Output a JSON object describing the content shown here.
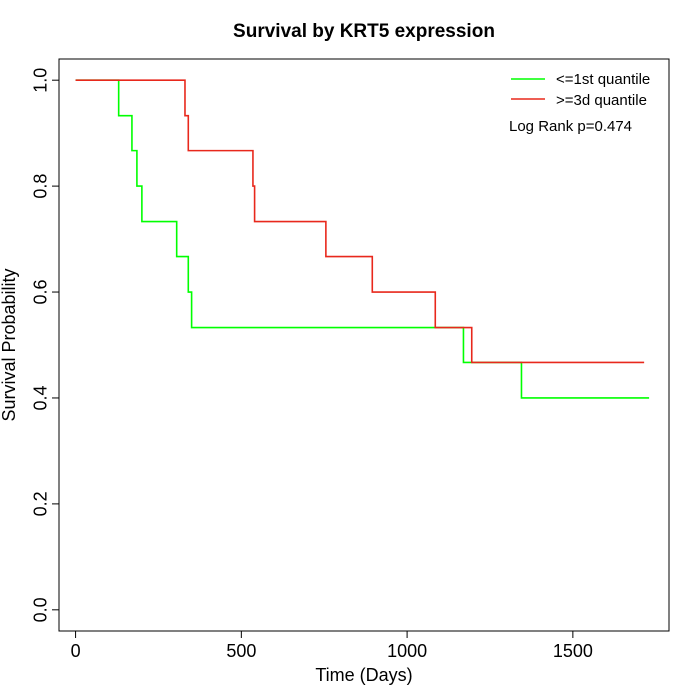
{
  "chart_data": {
    "type": "line",
    "title": "Survival by KRT5 expression",
    "xlabel": "Time (Days)",
    "ylabel": "Survival Probability",
    "xlim": [
      -50,
      1790
    ],
    "ylim": [
      -0.04,
      1.04
    ],
    "x_ticks": [
      {
        "value": 0,
        "label": "0"
      },
      {
        "value": 500,
        "label": "500"
      },
      {
        "value": 1000,
        "label": "1000"
      },
      {
        "value": 1500,
        "label": "1500"
      }
    ],
    "y_ticks": [
      {
        "value": 0.0,
        "label": "0.0"
      },
      {
        "value": 0.2,
        "label": "0.2"
      },
      {
        "value": 0.4,
        "label": "0.4"
      },
      {
        "value": 0.6,
        "label": "0.6"
      },
      {
        "value": 0.8,
        "label": "0.8"
      },
      {
        "value": 1.0,
        "label": "1.0"
      }
    ],
    "grid": false,
    "legend_position": "top-right",
    "series": [
      {
        "name": "<=1st quantile",
        "color": "#00ff00",
        "step": true,
        "points": [
          [
            0,
            1.0
          ],
          [
            130,
            0.933
          ],
          [
            170,
            0.867
          ],
          [
            185,
            0.8
          ],
          [
            200,
            0.733
          ],
          [
            305,
            0.667
          ],
          [
            340,
            0.6
          ],
          [
            350,
            0.533
          ],
          [
            1170,
            0.467
          ],
          [
            1345,
            0.4
          ],
          [
            1730,
            0.4
          ]
        ]
      },
      {
        "name": ">=3d quantile",
        "color": "#e8281c",
        "step": true,
        "points": [
          [
            0,
            1.0
          ],
          [
            330,
            0.933
          ],
          [
            340,
            0.867
          ],
          [
            535,
            0.8
          ],
          [
            540,
            0.733
          ],
          [
            755,
            0.667
          ],
          [
            895,
            0.6
          ],
          [
            1085,
            0.533
          ],
          [
            1195,
            0.467
          ],
          [
            1715,
            0.467
          ]
        ]
      }
    ],
    "annotations": [
      "Log Rank p=0.474"
    ]
  }
}
